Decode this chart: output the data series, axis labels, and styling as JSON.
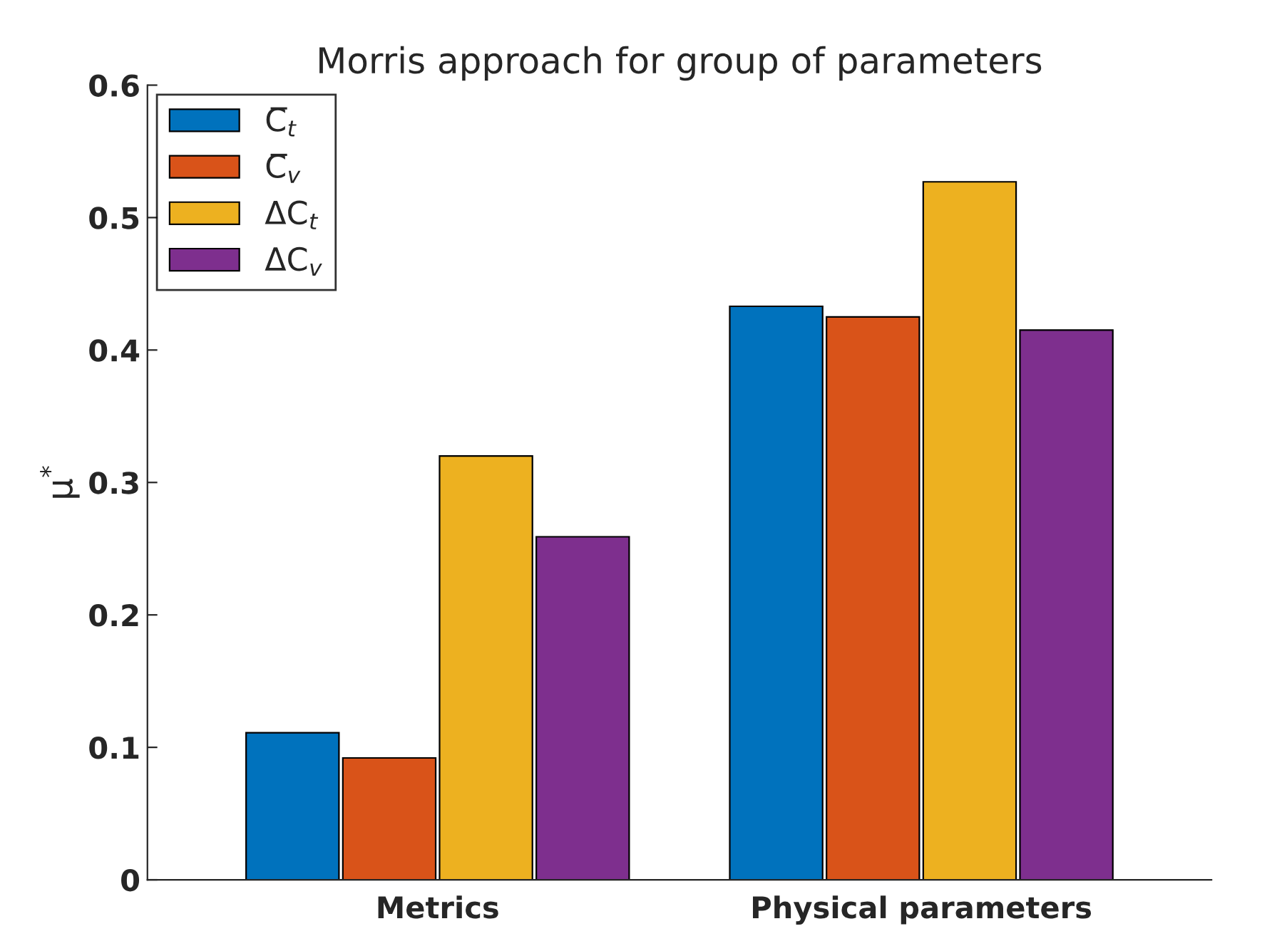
{
  "chart_data": {
    "type": "bar",
    "title": "Morris approach for group of parameters",
    "ylabel": "μ$^{*}$",
    "categories": [
      "Metrics",
      "Physical parameters"
    ],
    "series": [
      {
        "name": "C̅$_{t}$",
        "color": "#0072bd",
        "values": [
          0.111,
          0.433
        ]
      },
      {
        "name": "C̅$_{v}$",
        "color": "#d95319",
        "values": [
          0.092,
          0.425
        ]
      },
      {
        "name": "ΔC$_{t}$",
        "color": "#edb120",
        "values": [
          0.32,
          0.527
        ]
      },
      {
        "name": "ΔC$_{v}$",
        "color": "#7e2f8e",
        "values": [
          0.259,
          0.415
        ]
      }
    ],
    "ylim": [
      0,
      0.6
    ],
    "yticks": [
      0,
      0.1,
      0.2,
      0.3,
      0.4,
      0.5,
      0.6
    ],
    "grid": false,
    "legend": "top left"
  }
}
